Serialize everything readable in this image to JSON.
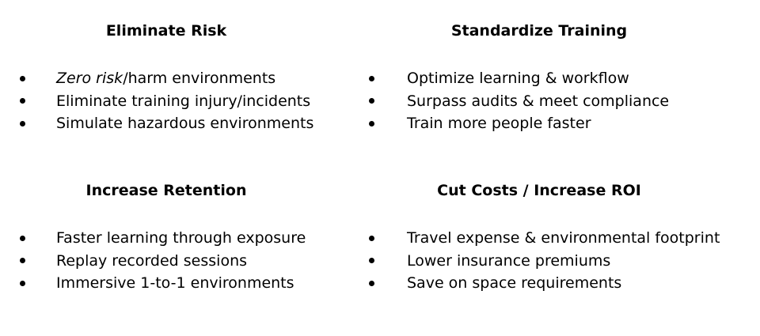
{
  "sections": [
    {
      "heading": "Eliminate Risk",
      "items": [
        {
          "emph": "Zero risk",
          "text": "/harm environments"
        },
        {
          "emph": "",
          "text": "Eliminate training injury/incidents"
        },
        {
          "emph": "",
          "text": "Simulate hazardous environments"
        }
      ]
    },
    {
      "heading": "Standardize Training",
      "items": [
        {
          "emph": "",
          "text": "Optimize learning & workflow"
        },
        {
          "emph": "",
          "text": "Surpass audits & meet compliance"
        },
        {
          "emph": "",
          "text": "Train more people faster"
        }
      ]
    },
    {
      "heading": "Increase Retention",
      "items": [
        {
          "emph": "",
          "text": "Faster learning through exposure"
        },
        {
          "emph": "",
          "text": "Replay recorded sessions"
        },
        {
          "emph": "",
          "text": "Immersive 1-to-1 environments"
        }
      ]
    },
    {
      "heading": "Cut Costs / Increase ROI",
      "items": [
        {
          "emph": "",
          "text": "Travel expense & environmental footprint"
        },
        {
          "emph": "",
          "text": "Lower insurance premiums"
        },
        {
          "emph": "",
          "text": "Save on space requirements"
        }
      ]
    }
  ]
}
